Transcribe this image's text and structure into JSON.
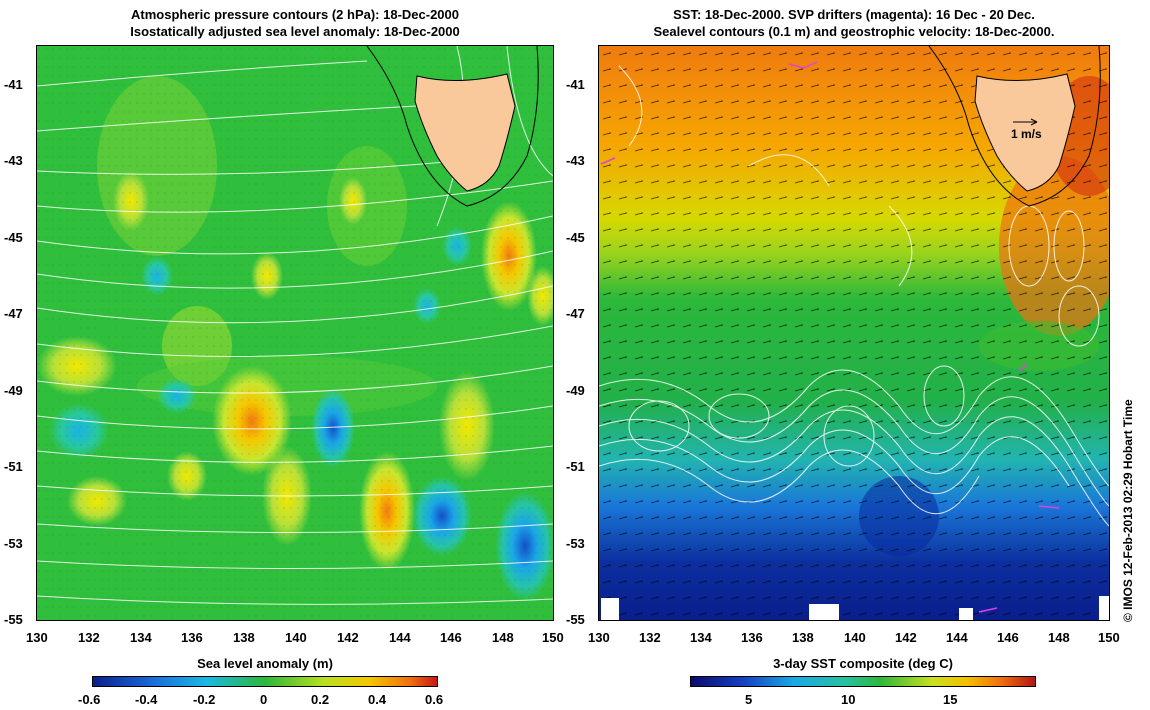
{
  "left_panel": {
    "title_line1": "Atmospheric pressure contours (2 hPa): 18-Dec-2000",
    "title_line2": "Isostatically adjusted sea level anomaly: 18-Dec-2000",
    "colorbar_title": "Sea level anomaly (m)",
    "colorbar_ticks": [
      "-0.6",
      "-0.4",
      "-0.2",
      "0",
      "0.2",
      "0.4",
      "0.6"
    ],
    "colors": {
      "ocean": "#33c13a",
      "land": "#f9c89b"
    }
  },
  "right_panel": {
    "title_line1": "SST: 18-Dec-2000. SVP drifters (magenta): 16 Dec - 20 Dec.",
    "title_line2": "Sealevel contours (0.1 m) and geostrophic velocity: 18-Dec-2000.",
    "colorbar_title": "3-day SST composite (deg C)",
    "colorbar_ticks": [
      "5",
      "10",
      "15"
    ],
    "velocity_scale_label": "1 m/s",
    "colors": {
      "warm": "#f07b10",
      "cold": "#0a2a9c",
      "land": "#f9c89b",
      "drifter": "#e040e0"
    }
  },
  "axes": {
    "x_ticks": [
      "130",
      "132",
      "134",
      "136",
      "138",
      "140",
      "142",
      "144",
      "146",
      "148",
      "150"
    ],
    "y_ticks": [
      "-41",
      "-43",
      "-45",
      "-47",
      "-49",
      "-51",
      "-53",
      "-55"
    ]
  },
  "credit": "© IMOS 12-Feb-2013 02:29 Hobart Time"
}
